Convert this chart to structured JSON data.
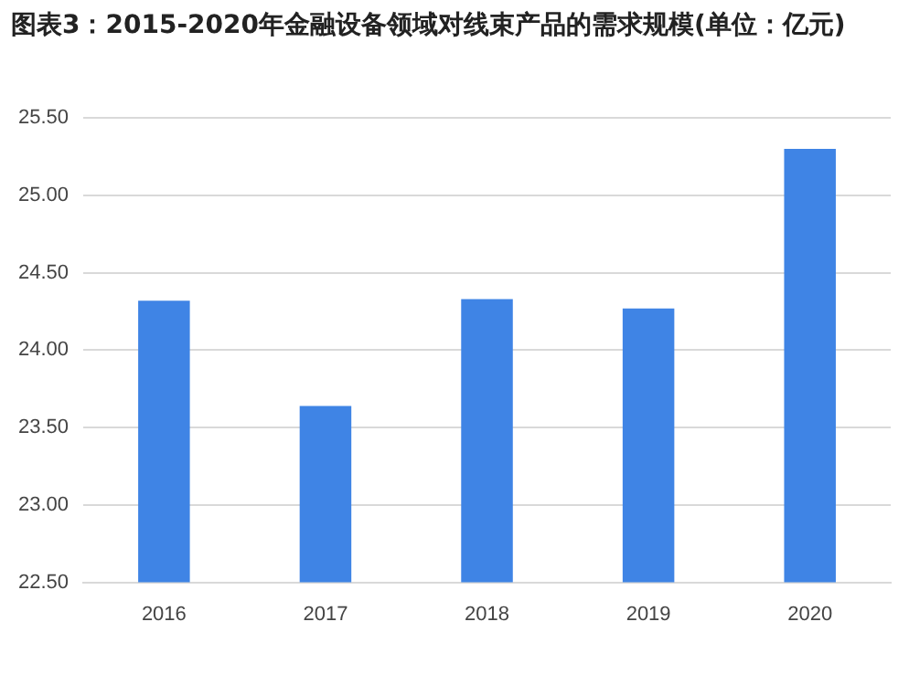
{
  "chart_data": {
    "type": "bar",
    "title": "图表3：2015-2020年金融设备领域对线束产品的需求规模(单位：亿元)",
    "categories": [
      "2016",
      "2017",
      "2018",
      "2019",
      "2020"
    ],
    "values": [
      24.32,
      23.64,
      24.33,
      24.27,
      25.3
    ],
    "color": "#3f84e5",
    "ylim": [
      22.5,
      25.5
    ],
    "yticks": [
      {
        "value": 22.5,
        "label": "22.50"
      },
      {
        "value": 23,
        "label": "23.00"
      },
      {
        "value": 23.5,
        "label": "23.50"
      },
      {
        "value": 24,
        "label": "24.00"
      },
      {
        "value": 24.5,
        "label": "24.50"
      },
      {
        "value": 25,
        "label": "25.00"
      },
      {
        "value": 25.5,
        "label": "25.50"
      }
    ],
    "grid": "y",
    "legend": false
  }
}
